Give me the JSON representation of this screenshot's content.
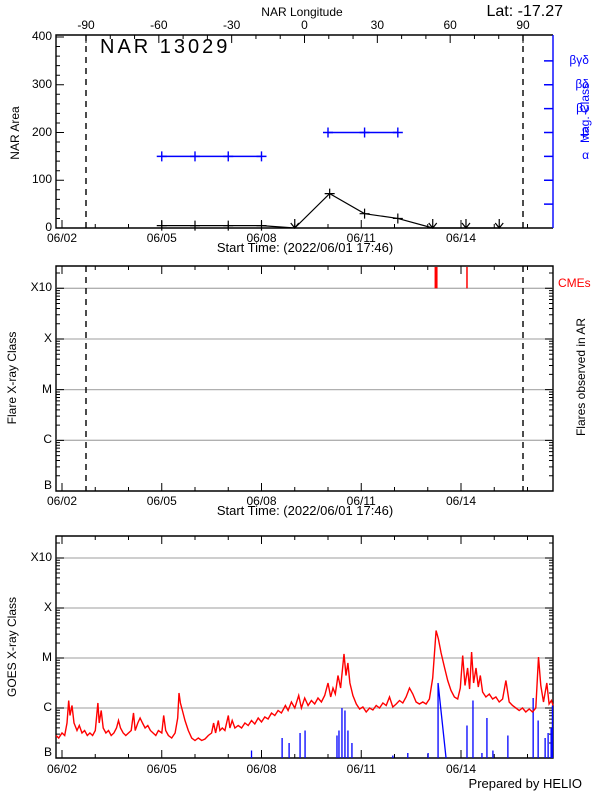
{
  "labels": {
    "lat": "Lat: -17.27",
    "longitude_axis_title": "NAR Longitude",
    "region_title": "NAR 13029",
    "start_time": "Start Time: (2022/06/01 17:46)",
    "nar_area_axis": "NAR Area",
    "mag_class_axis": "Mag. Class",
    "flare_axis": "Flare X-ray Class",
    "goes_axis": "GOES X-ray Class",
    "cmes": "CMEs",
    "flares_observed": "Flares observed in AR",
    "prepared_by": "Prepared by HELIO"
  },
  "colors": {
    "black": "#000000",
    "blue": "#0000ff",
    "red": "#ff0000",
    "gridline_gray": "#b0b0b0",
    "background": "#ffffff"
  },
  "chart_data": [
    {
      "type": "line",
      "panel": "nar_area",
      "title": "NAR 13029",
      "annotation_lat": "Lat: -17.27",
      "ylabel": "NAR Area",
      "y2label": "Mag. Class",
      "xlabel": "Start Time: (2022/06/01 17:46)",
      "top_axis_label": "NAR Longitude",
      "ylim": [
        0,
        400
      ],
      "y_ticks": [
        0,
        100,
        200,
        300,
        400
      ],
      "x_tick_labels": [
        "06/02",
        "06/05",
        "06/08",
        "06/11",
        "06/14"
      ],
      "x_tick_days": [
        2,
        5,
        8,
        11,
        14
      ],
      "x_minor_days": [
        2,
        3,
        4,
        5,
        6,
        7,
        8,
        9,
        10,
        11,
        12,
        13,
        14,
        15,
        16
      ],
      "x_range_days": [
        1.82,
        16.77
      ],
      "longitude_ticks": [
        -90,
        -60,
        -30,
        0,
        30,
        60,
        90
      ],
      "limb_lines_longitude": [
        -90,
        90
      ],
      "mag_class_axis": {
        "labels": [
          "βγδ",
          "βδ",
          "βγ",
          "β",
          "α"
        ],
        "area_levels": [
          350,
          300,
          250,
          200,
          150
        ],
        "unlabeled_tick_levels": [
          100,
          50
        ]
      },
      "nar_area_series": {
        "name": "NAR Area",
        "points": [
          [
            5.0,
            5
          ],
          [
            6.0,
            5
          ],
          [
            7.0,
            5
          ],
          [
            8.0,
            5
          ],
          [
            9.0,
            0
          ],
          [
            10.05,
            72
          ],
          [
            11.1,
            30
          ],
          [
            12.1,
            20
          ],
          [
            13.15,
            0
          ],
          [
            14.15,
            0
          ],
          [
            15.15,
            0
          ]
        ],
        "plus_marker_days": [
          5.0,
          6.0,
          7.0,
          8.0,
          10.05,
          11.1,
          12.1
        ],
        "arrow_marker_days": [
          9.0,
          13.15,
          14.15,
          15.15
        ]
      },
      "mag_class_series": [
        {
          "class": "α",
          "area_level": 150,
          "marker_days": [
            5.0,
            6.0,
            7.0,
            8.0
          ]
        },
        {
          "class": "β",
          "area_level": 200,
          "marker_days": [
            10.0,
            11.1,
            12.1
          ]
        }
      ]
    },
    {
      "type": "line",
      "panel": "flares_in_ar",
      "ylabel": "Flare X-ray Class",
      "y2label": "Flares observed in AR",
      "xlabel": "Start Time: (2022/06/01 17:46)",
      "cme_label": "CMEs",
      "y_tick_labels": [
        "X10",
        "X",
        "M",
        "C",
        "B"
      ],
      "y_tick_logflux": [
        -3,
        -4,
        -5,
        -6,
        -7
      ],
      "x_tick_labels": [
        "06/02",
        "06/05",
        "06/08",
        "06/11",
        "06/14"
      ],
      "x_tick_days": [
        2,
        5,
        8,
        11,
        14
      ],
      "x_minor_days": [
        2,
        3,
        4,
        5,
        6,
        7,
        8,
        9,
        10,
        11,
        12,
        13,
        14,
        15,
        16
      ],
      "x_range_days": [
        1.82,
        16.77
      ],
      "limb_lines_longitude": [
        -90,
        90
      ],
      "flares": [],
      "cmes": [
        {
          "day": 13.25,
          "weight": 3
        },
        {
          "day": 14.18,
          "weight": 1.5
        }
      ]
    },
    {
      "type": "line",
      "panel": "goes_xray",
      "ylabel": "GOES X-ray Class",
      "xlabel": "",
      "credit": "Prepared by HELIO",
      "y_tick_labels": [
        "X10",
        "X",
        "M",
        "C",
        "B"
      ],
      "y_tick_logflux": [
        -3,
        -4,
        -5,
        -6,
        -7
      ],
      "x_tick_labels": [
        "06/02",
        "06/05",
        "06/08",
        "06/11",
        "06/14"
      ],
      "x_tick_days": [
        2,
        5,
        8,
        11,
        14
      ],
      "x_minor_days": [
        2,
        3,
        4,
        5,
        6,
        7,
        8,
        9,
        10,
        11,
        12,
        13,
        14,
        15,
        16
      ],
      "x_range_days": [
        1.82,
        16.77
      ],
      "goes_flux_series": {
        "name": "GOES flux",
        "units": "log10 W/m^2",
        "points": [
          [
            1.82,
            -6.55
          ],
          [
            1.9,
            -6.6
          ],
          [
            2.0,
            -6.5
          ],
          [
            2.08,
            -6.55
          ],
          [
            2.15,
            -6.3
          ],
          [
            2.2,
            -5.85
          ],
          [
            2.24,
            -6.15
          ],
          [
            2.3,
            -5.95
          ],
          [
            2.36,
            -6.3
          ],
          [
            2.45,
            -6.45
          ],
          [
            2.52,
            -6.35
          ],
          [
            2.6,
            -6.5
          ],
          [
            2.68,
            -6.45
          ],
          [
            2.76,
            -6.55
          ],
          [
            2.84,
            -6.5
          ],
          [
            2.92,
            -6.55
          ],
          [
            3.0,
            -6.45
          ],
          [
            3.08,
            -5.9
          ],
          [
            3.12,
            -6.3
          ],
          [
            3.18,
            -6.05
          ],
          [
            3.24,
            -6.4
          ],
          [
            3.32,
            -6.5
          ],
          [
            3.4,
            -6.45
          ],
          [
            3.48,
            -6.55
          ],
          [
            3.56,
            -6.5
          ],
          [
            3.64,
            -6.4
          ],
          [
            3.7,
            -6.25
          ],
          [
            3.76,
            -6.4
          ],
          [
            3.84,
            -6.5
          ],
          [
            3.92,
            -6.55
          ],
          [
            4.0,
            -6.5
          ],
          [
            4.08,
            -6.45
          ],
          [
            4.15,
            -6.1
          ],
          [
            4.2,
            -6.45
          ],
          [
            4.28,
            -6.3
          ],
          [
            4.35,
            -6.2
          ],
          [
            4.42,
            -6.3
          ],
          [
            4.5,
            -6.4
          ],
          [
            4.58,
            -6.35
          ],
          [
            4.66,
            -6.45
          ],
          [
            4.74,
            -6.5
          ],
          [
            4.82,
            -6.55
          ],
          [
            4.9,
            -6.45
          ],
          [
            5.0,
            -6.5
          ],
          [
            5.06,
            -6.15
          ],
          [
            5.12,
            -6.45
          ],
          [
            5.2,
            -6.55
          ],
          [
            5.3,
            -6.6
          ],
          [
            5.4,
            -6.5
          ],
          [
            5.48,
            -6.2
          ],
          [
            5.52,
            -5.7
          ],
          [
            5.56,
            -5.9
          ],
          [
            5.62,
            -6.05
          ],
          [
            5.7,
            -6.25
          ],
          [
            5.8,
            -6.45
          ],
          [
            5.9,
            -6.6
          ],
          [
            6.0,
            -6.65
          ],
          [
            6.1,
            -6.6
          ],
          [
            6.2,
            -6.65
          ],
          [
            6.3,
            -6.62
          ],
          [
            6.4,
            -6.55
          ],
          [
            6.5,
            -6.5
          ],
          [
            6.56,
            -6.3
          ],
          [
            6.62,
            -6.5
          ],
          [
            6.7,
            -6.25
          ],
          [
            6.75,
            -6.45
          ],
          [
            6.82,
            -6.4
          ],
          [
            6.9,
            -6.45
          ],
          [
            7.0,
            -6.15
          ],
          [
            7.05,
            -6.4
          ],
          [
            7.12,
            -6.25
          ],
          [
            7.2,
            -6.4
          ],
          [
            7.3,
            -6.35
          ],
          [
            7.4,
            -6.4
          ],
          [
            7.5,
            -6.3
          ],
          [
            7.6,
            -6.35
          ],
          [
            7.7,
            -6.25
          ],
          [
            7.8,
            -6.32
          ],
          [
            7.9,
            -6.2
          ],
          [
            8.0,
            -6.28
          ],
          [
            8.1,
            -6.18
          ],
          [
            8.2,
            -6.22
          ],
          [
            8.3,
            -6.1
          ],
          [
            8.4,
            -6.15
          ],
          [
            8.5,
            -6.05
          ],
          [
            8.6,
            -6.1
          ],
          [
            8.72,
            -5.95
          ],
          [
            8.8,
            -6.05
          ],
          [
            8.9,
            -5.88
          ],
          [
            9.0,
            -6.0
          ],
          [
            9.12,
            -5.75
          ],
          [
            9.2,
            -6.0
          ],
          [
            9.3,
            -5.8
          ],
          [
            9.4,
            -5.95
          ],
          [
            9.5,
            -5.85
          ],
          [
            9.6,
            -5.92
          ],
          [
            9.7,
            -5.8
          ],
          [
            9.8,
            -5.88
          ],
          [
            9.9,
            -5.75
          ],
          [
            10.0,
            -5.5
          ],
          [
            10.08,
            -5.78
          ],
          [
            10.15,
            -5.6
          ],
          [
            10.22,
            -5.72
          ],
          [
            10.3,
            -5.35
          ],
          [
            10.38,
            -5.6
          ],
          [
            10.48,
            -4.92
          ],
          [
            10.54,
            -5.35
          ],
          [
            10.6,
            -5.1
          ],
          [
            10.66,
            -5.5
          ],
          [
            10.75,
            -5.75
          ],
          [
            10.85,
            -5.92
          ],
          [
            10.95,
            -6.02
          ],
          [
            11.05,
            -5.98
          ],
          [
            11.15,
            -6.08
          ],
          [
            11.25,
            -6.0
          ],
          [
            11.35,
            -6.04
          ],
          [
            11.45,
            -5.95
          ],
          [
            11.55,
            -6.0
          ],
          [
            11.65,
            -5.9
          ],
          [
            11.75,
            -5.95
          ],
          [
            11.85,
            -5.78
          ],
          [
            11.95,
            -5.98
          ],
          [
            12.05,
            -5.92
          ],
          [
            12.15,
            -5.85
          ],
          [
            12.25,
            -5.9
          ],
          [
            12.35,
            -5.78
          ],
          [
            12.45,
            -5.6
          ],
          [
            12.55,
            -5.72
          ],
          [
            12.65,
            -5.88
          ],
          [
            12.75,
            -5.92
          ],
          [
            12.85,
            -5.88
          ],
          [
            12.95,
            -5.92
          ],
          [
            13.05,
            -5.82
          ],
          [
            13.15,
            -5.4
          ],
          [
            13.25,
            -4.45
          ],
          [
            13.32,
            -4.62
          ],
          [
            13.4,
            -4.9
          ],
          [
            13.5,
            -5.18
          ],
          [
            13.6,
            -5.45
          ],
          [
            13.7,
            -5.65
          ],
          [
            13.8,
            -5.78
          ],
          [
            13.9,
            -5.82
          ],
          [
            13.98,
            -5.6
          ],
          [
            14.05,
            -4.95
          ],
          [
            14.12,
            -5.55
          ],
          [
            14.2,
            -5.2
          ],
          [
            14.26,
            -5.62
          ],
          [
            14.32,
            -4.88
          ],
          [
            14.38,
            -5.5
          ],
          [
            14.45,
            -5.2
          ],
          [
            14.52,
            -5.58
          ],
          [
            14.58,
            -5.35
          ],
          [
            14.65,
            -5.68
          ],
          [
            14.75,
            -5.78
          ],
          [
            14.85,
            -5.72
          ],
          [
            14.95,
            -5.82
          ],
          [
            15.05,
            -5.78
          ],
          [
            15.15,
            -5.88
          ],
          [
            15.25,
            -5.82
          ],
          [
            15.35,
            -5.45
          ],
          [
            15.45,
            -5.88
          ],
          [
            15.55,
            -5.95
          ],
          [
            15.65,
            -6.0
          ],
          [
            15.75,
            -6.05
          ],
          [
            15.85,
            -6.0
          ],
          [
            15.95,
            -6.08
          ],
          [
            16.05,
            -6.02
          ],
          [
            16.15,
            -6.08
          ],
          [
            16.25,
            -6.0
          ],
          [
            16.33,
            -4.98
          ],
          [
            16.4,
            -5.55
          ],
          [
            16.48,
            -5.88
          ],
          [
            16.58,
            -5.5
          ],
          [
            16.65,
            -5.92
          ],
          [
            16.72,
            -5.85
          ],
          [
            16.77,
            -5.95
          ]
        ]
      },
      "flare_spike_series": {
        "name": "Flares in AR (blue spikes)",
        "spikes": [
          [
            7.7,
            -6.85
          ],
          [
            8.62,
            -6.6
          ],
          [
            8.83,
            -6.7
          ],
          [
            9.16,
            -6.5
          ],
          [
            9.31,
            -6.45
          ],
          [
            10.27,
            -6.55
          ],
          [
            10.33,
            -6.45
          ],
          [
            10.42,
            -6.0
          ],
          [
            10.51,
            -6.05
          ],
          [
            10.6,
            -6.45
          ],
          [
            10.72,
            -6.7
          ],
          [
            11.95,
            -6.95
          ],
          [
            12.4,
            -6.9
          ],
          [
            13.01,
            -6.9
          ],
          [
            13.31,
            -5.5
          ],
          [
            14.18,
            -6.35
          ],
          [
            14.36,
            -5.85
          ],
          [
            14.63,
            -6.9
          ],
          [
            14.78,
            -6.2
          ],
          [
            14.96,
            -6.85
          ],
          [
            15.41,
            -6.55
          ],
          [
            16.17,
            -5.8
          ],
          [
            16.32,
            -6.25
          ],
          [
            16.53,
            -6.6
          ],
          [
            16.62,
            -6.5
          ],
          [
            16.71,
            -6.4
          ],
          [
            16.75,
            -5.95
          ]
        ],
        "big_spike_decay": {
          "start_day": 13.31,
          "end_day": 13.55
        }
      }
    }
  ]
}
